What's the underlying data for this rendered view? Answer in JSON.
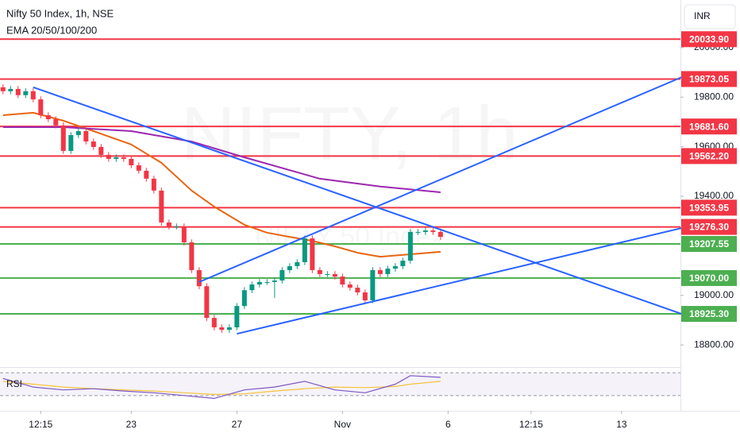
{
  "chart_data": {
    "type": "candlestick",
    "title": "Nifty 50 Index, 1h, NSE",
    "subtitle": "EMA 20/50/100/200",
    "currency": "INR",
    "watermark": "NIFTY, 1h",
    "watermark_sub": "NIFTY 50 Index",
    "xlim": [
      -0.4,
      89.8
    ],
    "ylim": [
      18717,
      20192
    ],
    "xticks": [
      {
        "value": 5,
        "label": "12:15"
      },
      {
        "value": 17,
        "label": "23"
      },
      {
        "value": 31,
        "label": "27"
      },
      {
        "value": 45,
        "label": "Nov"
      },
      {
        "value": 59,
        "label": "6"
      },
      {
        "value": 70,
        "label": "12:15"
      },
      {
        "value": 82,
        "label": "13"
      }
    ],
    "yticks": [
      {
        "value": 20000,
        "label": "20000.00"
      },
      {
        "value": 19800,
        "label": "19800.00"
      },
      {
        "value": 19600,
        "label": "19600.00"
      },
      {
        "value": 19400,
        "label": "19400.00"
      },
      {
        "value": 19000,
        "label": "19000.00"
      },
      {
        "value": 18800,
        "label": "18800.00"
      }
    ],
    "up_color": "#089981",
    "down_color": "#f23645",
    "candles": [
      [
        19840,
        19852,
        19812,
        19824
      ],
      [
        19824,
        19845,
        19812,
        19833
      ],
      [
        19833,
        19845,
        19796,
        19808
      ],
      [
        19808,
        19836,
        19796,
        19824
      ],
      [
        19824,
        19836,
        19779,
        19791
      ],
      [
        19791,
        19803,
        19715,
        19727
      ],
      [
        19727,
        19739,
        19699,
        19711
      ],
      [
        19711,
        19723,
        19674,
        19686
      ],
      [
        19686,
        19698,
        19571,
        19583
      ],
      [
        19583,
        19659,
        19571,
        19647
      ],
      [
        19647,
        19675,
        19635,
        19663
      ],
      [
        19663,
        19675,
        19609,
        19621
      ],
      [
        19621,
        19633,
        19587,
        19599
      ],
      [
        19599,
        19611,
        19555,
        19567
      ],
      [
        19567,
        19579,
        19539,
        19551
      ],
      [
        19551,
        19569,
        19539,
        19557
      ],
      [
        19557,
        19569,
        19539,
        19551
      ],
      [
        19551,
        19563,
        19513,
        19525
      ],
      [
        19525,
        19537,
        19491,
        19503
      ],
      [
        19503,
        19515,
        19459,
        19471
      ],
      [
        19471,
        19483,
        19411,
        19423
      ],
      [
        19423,
        19435,
        19282,
        19294
      ],
      [
        19294,
        19306,
        19266,
        19278
      ],
      [
        19278,
        19290,
        19266,
        19278
      ],
      [
        19278,
        19290,
        19202,
        19214
      ],
      [
        19214,
        19226,
        19090,
        19102
      ],
      [
        19102,
        19114,
        19025,
        19037
      ],
      [
        19037,
        19049,
        18897,
        18909
      ],
      [
        18909,
        18921,
        18859,
        18871
      ],
      [
        18871,
        18883,
        18849,
        18861
      ],
      [
        18861,
        18883,
        18849,
        18871
      ],
      [
        18871,
        18969,
        18859,
        18957
      ],
      [
        18957,
        19033,
        18945,
        19021
      ],
      [
        19021,
        19056,
        19009,
        19044
      ],
      [
        19044,
        19066,
        19032,
        19054
      ],
      [
        19054,
        19066,
        19042,
        19054
      ],
      [
        19054,
        19072,
        18990,
        19060
      ],
      [
        19060,
        19114,
        19048,
        19102
      ],
      [
        19102,
        19130,
        19090,
        19118
      ],
      [
        19118,
        19146,
        19106,
        19134
      ],
      [
        19134,
        19242,
        19122,
        19230
      ],
      [
        19230,
        19242,
        19090,
        19102
      ],
      [
        19102,
        19114,
        19074,
        19086
      ],
      [
        19086,
        19098,
        19074,
        19086
      ],
      [
        19086,
        19098,
        19064,
        19076
      ],
      [
        19076,
        19088,
        19032,
        19044
      ],
      [
        19044,
        19056,
        19019,
        19031
      ],
      [
        19031,
        19043,
        19000,
        19012
      ],
      [
        19012,
        19024,
        18968,
        18980
      ],
      [
        18980,
        19114,
        18968,
        19102
      ],
      [
        19102,
        19114,
        19074,
        19086
      ],
      [
        19086,
        19120,
        19074,
        19108
      ],
      [
        19108,
        19130,
        19096,
        19118
      ],
      [
        19118,
        19152,
        19106,
        19140
      ],
      [
        19140,
        19268,
        19128,
        19256
      ],
      [
        19256,
        19268,
        19244,
        19256
      ],
      [
        19256,
        19274,
        19244,
        19262
      ],
      [
        19262,
        19274,
        19244,
        19256
      ],
      [
        19256,
        19268,
        19224,
        19236
      ]
    ],
    "series": [
      {
        "color": "#e8650f",
        "x": [
          0,
          4,
          8,
          12,
          17,
          21,
          25,
          28,
          32,
          35,
          38,
          41,
          44,
          47,
          50,
          54,
          58
        ],
        "values": [
          19727,
          19737,
          19705,
          19663,
          19609,
          19535,
          19423,
          19358,
          19285,
          19253,
          19236,
          19220,
          19198,
          19172,
          19156,
          19166,
          19176
        ]
      },
      {
        "color": "#9c27b0",
        "x": [
          0,
          8,
          17,
          25,
          32,
          42,
          50,
          58
        ],
        "values": [
          19679,
          19679,
          19663,
          19621,
          19557,
          19471,
          19439,
          19416
        ]
      }
    ],
    "levels": [
      {
        "value": 20033.9,
        "label": "20033.90",
        "color": "#f23645"
      },
      {
        "value": 19873.05,
        "label": "19873.05",
        "color": "#f23645"
      },
      {
        "value": 19681.6,
        "label": "19681.60",
        "color": "#f23645"
      },
      {
        "value": 19562.2,
        "label": "19562.20",
        "color": "#f23645"
      },
      {
        "value": 19353.95,
        "label": "19353.95",
        "color": "#f23645"
      },
      {
        "value": 19276.3,
        "label": "19276.30",
        "color": "#f23645"
      },
      {
        "value": 19207.55,
        "label": "19207.55",
        "color": "#4caf50"
      },
      {
        "value": 19070,
        "label": "19070.00",
        "color": "#4caf50"
      },
      {
        "value": 18925.3,
        "label": "18925.30",
        "color": "#4caf50"
      }
    ],
    "trendlines": [
      {
        "color": "#2962ff",
        "x": [
          4,
          90
        ],
        "values": [
          19840,
          18925
        ]
      },
      {
        "color": "#2962ff",
        "x": [
          26,
          90
        ],
        "values": [
          19054,
          19881
        ]
      },
      {
        "color": "#2962ff",
        "x": [
          31,
          90
        ],
        "values": [
          18845,
          19272
        ]
      }
    ],
    "rsi": {
      "name": "RSI",
      "ylim": [
        20,
        80
      ],
      "bands": [
        30,
        70
      ],
      "color": "#7e57c2",
      "ma_color": "#f5c33b",
      "x": [
        0,
        4,
        8,
        12,
        16,
        20,
        24,
        28,
        32,
        36,
        40,
        44,
        48,
        52,
        54,
        58
      ],
      "values": [
        60,
        45,
        40,
        42,
        38,
        35,
        30,
        25,
        40,
        45,
        55,
        40,
        35,
        50,
        65,
        62
      ],
      "ma": [
        55,
        50,
        45,
        42,
        40,
        38,
        35,
        32,
        33,
        38,
        42,
        45,
        44,
        46,
        50,
        55
      ]
    }
  }
}
